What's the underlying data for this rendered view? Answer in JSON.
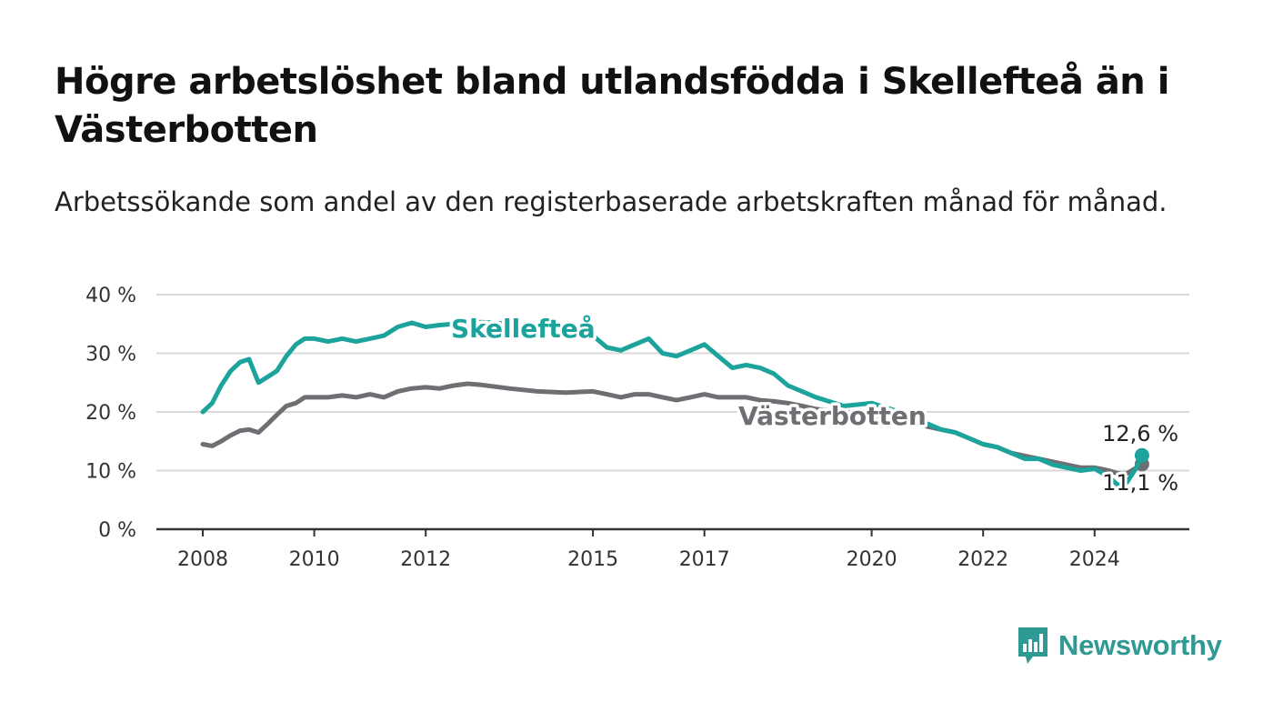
{
  "title": "Högre arbetslöshet bland utlandsfödda i Skellefteå än i Västerbotten",
  "subtitle": "Arbetssökande som andel av den registerbaserade arbetskraften månad för månad.",
  "brand": {
    "name": "Newsworthy",
    "icon": "newsworthy-logo-icon"
  },
  "chart_data": {
    "type": "line",
    "x_ticks": [
      "2008",
      "2010",
      "2012",
      "2015",
      "2017",
      "2020",
      "2022",
      "2024"
    ],
    "y_ticks": [
      "0 %",
      "10 %",
      "20 %",
      "30 %",
      "40 %"
    ],
    "ylim": [
      0,
      40
    ],
    "xlim": [
      2007.5,
      2026.0
    ],
    "grid": true,
    "series": [
      {
        "name": "Skellefteå",
        "color": "#1ba39c",
        "end_label": "12,6 %",
        "x": [
          2008.0,
          2008.17,
          2008.33,
          2008.5,
          2008.67,
          2008.83,
          2009.0,
          2009.17,
          2009.33,
          2009.5,
          2009.67,
          2009.83,
          2010.0,
          2010.25,
          2010.5,
          2010.75,
          2011.0,
          2011.25,
          2011.5,
          2011.75,
          2012.0,
          2012.25,
          2012.5,
          2012.75,
          2013.0,
          2013.5,
          2014.0,
          2014.5,
          2015.0,
          2015.25,
          2015.5,
          2015.75,
          2016.0,
          2016.25,
          2016.5,
          2016.75,
          2017.0,
          2017.25,
          2017.5,
          2017.75,
          2018.0,
          2018.25,
          2018.5,
          2018.75,
          2019.0,
          2019.5,
          2020.0,
          2020.5,
          2021.0,
          2021.25,
          2021.5,
          2021.75,
          2022.0,
          2022.25,
          2022.5,
          2022.75,
          2023.0,
          2023.25,
          2023.5,
          2023.75,
          2024.0,
          2024.25,
          2024.42,
          2024.58,
          2024.75,
          2024.85
        ],
        "y": [
          20.0,
          21.5,
          24.5,
          27.0,
          28.5,
          29.0,
          25.0,
          26.0,
          27.0,
          29.5,
          31.5,
          32.5,
          32.5,
          32.0,
          32.5,
          32.0,
          32.5,
          33.0,
          34.5,
          35.2,
          34.5,
          34.8,
          35.0,
          35.2,
          35.3,
          35.0,
          34.5,
          34.0,
          33.0,
          31.0,
          30.5,
          31.5,
          32.5,
          30.0,
          29.5,
          30.5,
          31.5,
          29.5,
          27.5,
          28.0,
          27.5,
          26.5,
          24.5,
          23.5,
          22.5,
          21.0,
          21.5,
          20.0,
          18.0,
          17.0,
          16.5,
          15.5,
          14.5,
          14.0,
          13.0,
          12.0,
          12.0,
          11.0,
          10.5,
          10.0,
          10.3,
          9.0,
          7.5,
          8.0,
          10.5,
          12.6
        ]
      },
      {
        "name": "Västerbotten",
        "color": "#6e6e73",
        "end_label": "11,1 %",
        "x": [
          2008.0,
          2008.17,
          2008.33,
          2008.5,
          2008.67,
          2008.83,
          2009.0,
          2009.17,
          2009.33,
          2009.5,
          2009.67,
          2009.83,
          2010.0,
          2010.25,
          2010.5,
          2010.75,
          2011.0,
          2011.25,
          2011.5,
          2011.75,
          2012.0,
          2012.25,
          2012.5,
          2012.75,
          2013.0,
          2013.5,
          2014.0,
          2014.5,
          2015.0,
          2015.25,
          2015.5,
          2015.75,
          2016.0,
          2016.25,
          2016.5,
          2016.75,
          2017.0,
          2017.25,
          2017.5,
          2017.75,
          2018.0,
          2018.25,
          2018.5,
          2018.75,
          2019.0,
          2019.5,
          2020.0,
          2020.5,
          2021.0,
          2021.25,
          2021.5,
          2021.75,
          2022.0,
          2022.25,
          2022.5,
          2022.75,
          2023.0,
          2023.25,
          2023.5,
          2023.75,
          2024.0,
          2024.25,
          2024.42,
          2024.58,
          2024.75,
          2024.85
        ],
        "y": [
          14.5,
          14.2,
          15.0,
          16.0,
          16.8,
          17.0,
          16.5,
          18.0,
          19.5,
          21.0,
          21.5,
          22.5,
          22.5,
          22.5,
          22.8,
          22.5,
          23.0,
          22.5,
          23.5,
          24.0,
          24.2,
          24.0,
          24.5,
          24.8,
          24.6,
          24.0,
          23.5,
          23.3,
          23.5,
          23.0,
          22.5,
          23.0,
          23.0,
          22.5,
          22.0,
          22.5,
          23.0,
          22.5,
          22.5,
          22.5,
          22.0,
          21.8,
          21.5,
          21.0,
          20.5,
          20.0,
          19.5,
          19.0,
          17.5,
          17.0,
          16.5,
          15.5,
          14.5,
          14.0,
          13.0,
          12.5,
          12.0,
          11.5,
          11.0,
          10.5,
          10.5,
          10.0,
          9.5,
          9.5,
          10.5,
          11.1
        ]
      }
    ]
  }
}
